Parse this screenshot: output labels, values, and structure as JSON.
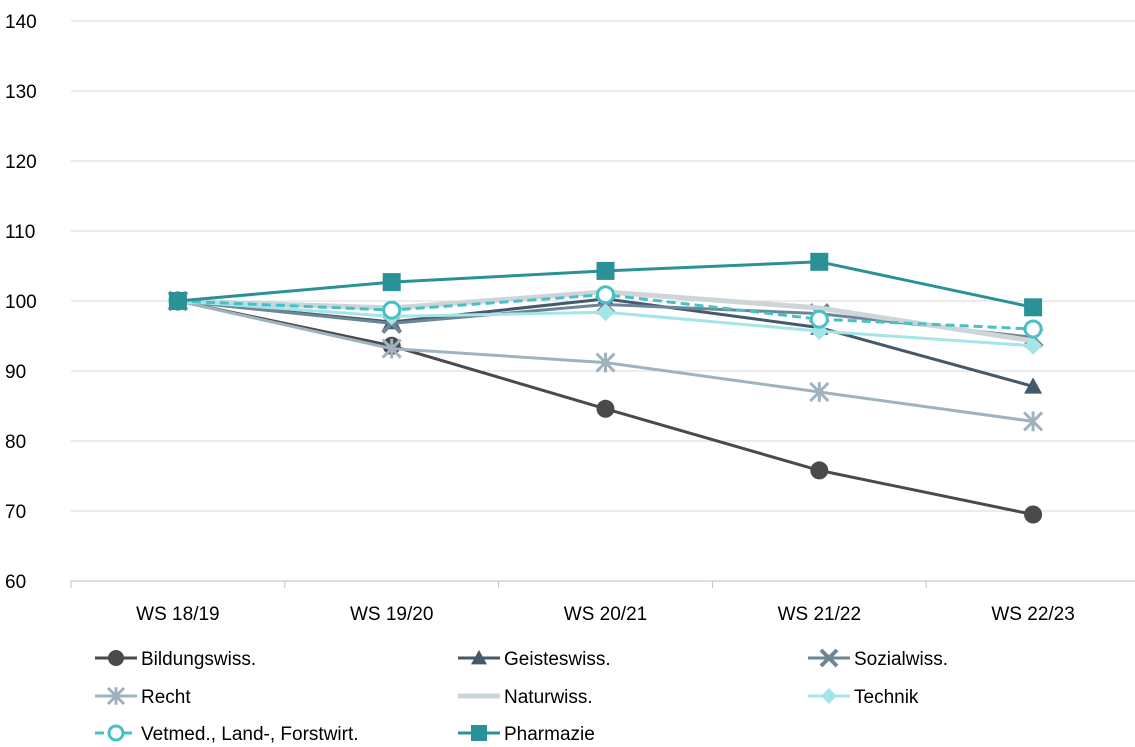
{
  "chart_data": {
    "type": "line",
    "title": "",
    "xlabel": "",
    "ylabel": "",
    "categories": [
      "WS 18/19",
      "WS 19/20",
      "WS 20/21",
      "WS 21/22",
      "WS 22/23"
    ],
    "ylim": [
      60,
      140
    ],
    "yticks": [
      60,
      70,
      80,
      90,
      100,
      110,
      120,
      130,
      140
    ],
    "grid": true,
    "legend_position": "bottom",
    "series": [
      {
        "name": "Bildungswiss.",
        "values": [
          100,
          93.6,
          84.6,
          75.8,
          69.5
        ],
        "color": "#4a4a4a",
        "marker": "circle",
        "dashed": false
      },
      {
        "name": "Geisteswiss.",
        "values": [
          100,
          97.0,
          100.3,
          96.2,
          87.8
        ],
        "color": "#44596a",
        "marker": "triangle",
        "dashed": false
      },
      {
        "name": "Sozialwiss.",
        "values": [
          100,
          96.8,
          99.5,
          98.2,
          94.8
        ],
        "color": "#6e8595",
        "marker": "x",
        "dashed": false
      },
      {
        "name": "Recht",
        "values": [
          100,
          93.2,
          91.2,
          87.0,
          82.8
        ],
        "color": "#9fb3bf",
        "marker": "star",
        "dashed": false
      },
      {
        "name": "Naturwiss.",
        "values": [
          100,
          99.0,
          101.3,
          99.0,
          94.3
        ],
        "color": "#ced5d9",
        "marker": "none",
        "dashed": false
      },
      {
        "name": "Technik",
        "values": [
          100,
          97.8,
          98.4,
          95.7,
          93.6
        ],
        "color": "#a4e5e7",
        "marker": "diamond",
        "dashed": false
      },
      {
        "name": "Vetmed., Land-, Forstwirt.",
        "values": [
          100,
          98.7,
          100.9,
          97.4,
          96.0
        ],
        "color": "#47c1c6",
        "marker": "circle-open",
        "dashed": true
      },
      {
        "name": "Pharmazie",
        "values": [
          100,
          102.7,
          104.3,
          105.6,
          99.1
        ],
        "color": "#2a9196",
        "marker": "square",
        "dashed": false
      }
    ]
  }
}
